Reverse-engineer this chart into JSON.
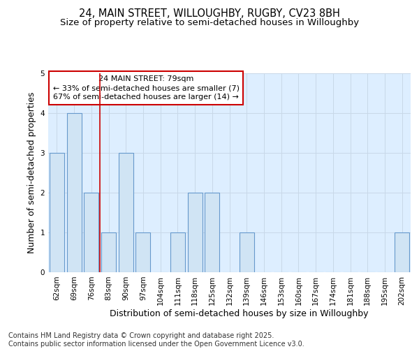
{
  "title_line1": "24, MAIN STREET, WILLOUGHBY, RUGBY, CV23 8BH",
  "title_line2": "Size of property relative to semi-detached houses in Willoughby",
  "xlabel": "Distribution of semi-detached houses by size in Willoughby",
  "ylabel": "Number of semi-detached properties",
  "categories": [
    "62sqm",
    "69sqm",
    "76sqm",
    "83sqm",
    "90sqm",
    "97sqm",
    "104sqm",
    "111sqm",
    "118sqm",
    "125sqm",
    "132sqm",
    "139sqm",
    "146sqm",
    "153sqm",
    "160sqm",
    "167sqm",
    "174sqm",
    "181sqm",
    "188sqm",
    "195sqm",
    "202sqm"
  ],
  "values": [
    3,
    4,
    2,
    1,
    3,
    1,
    0,
    1,
    2,
    2,
    0,
    1,
    0,
    0,
    0,
    0,
    0,
    0,
    0,
    0,
    1
  ],
  "bar_color": "#d0e4f4",
  "bar_edge_color": "#6699cc",
  "grid_color": "#c8d8e8",
  "background_color": "#ddeeff",
  "annotation_text": "24 MAIN STREET: 79sqm\n← 33% of semi-detached houses are smaller (7)\n67% of semi-detached houses are larger (14) →",
  "annotation_box_color": "#ffffff",
  "annotation_box_edge_color": "#cc0000",
  "red_line_x": 2.5,
  "ylim": [
    0,
    5
  ],
  "yticks": [
    0,
    1,
    2,
    3,
    4,
    5
  ],
  "footnote": "Contains HM Land Registry data © Crown copyright and database right 2025.\nContains public sector information licensed under the Open Government Licence v3.0.",
  "title_fontsize": 10.5,
  "subtitle_fontsize": 9.5,
  "axis_label_fontsize": 9,
  "tick_fontsize": 7.5,
  "annotation_fontsize": 8,
  "footnote_fontsize": 7
}
